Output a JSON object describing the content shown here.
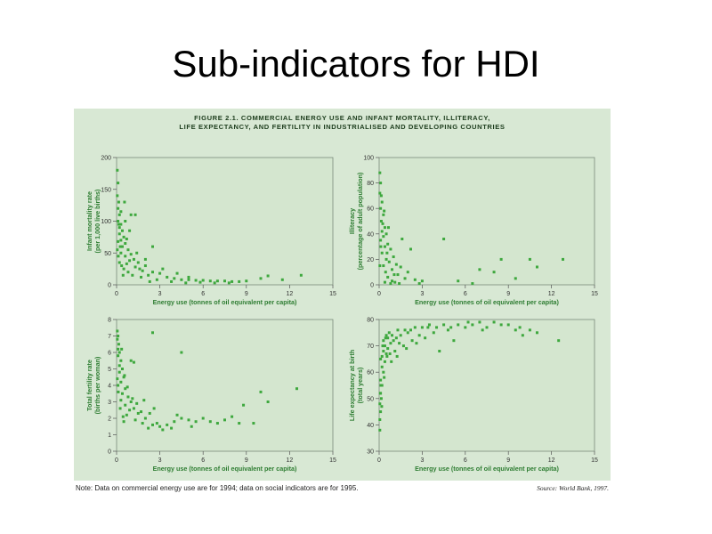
{
  "slide": {
    "title": "Sub-indicators for HDI"
  },
  "figure": {
    "caption_line1": "FIGURE 2.1. COMMERCIAL ENERGY USE AND INFANT MORTALITY, ILLITERACY,",
    "caption_line2": "LIFE EXPECTANCY, AND FERTILITY IN INDUSTRIALISED AND DEVELOPING COUNTRIES",
    "note": "Note: Data on commercial energy use are for 1994; data on social indicators are for 1995.",
    "source": "Source: World Bank, 1997.",
    "colors": {
      "panel_background": "#d8e8d4",
      "plot_background": "#d4e6cf",
      "points": "#3ea83e",
      "axis_text": "#2e7d32"
    }
  },
  "chart_data": [
    {
      "type": "scatter",
      "xlabel": "Energy use (tonnes of oil equivalent per capita)",
      "ylabel": "Infant mortality rate (per 1,000 live births)",
      "xlim": [
        0,
        15
      ],
      "ylim": [
        0,
        200
      ],
      "xticks": [
        0,
        3,
        6,
        9,
        12,
        15
      ],
      "yticks": [
        0,
        50,
        100,
        150,
        200
      ],
      "grid": false,
      "points": [
        [
          0.05,
          180
        ],
        [
          0.1,
          160
        ],
        [
          0.05,
          140
        ],
        [
          0.15,
          130
        ],
        [
          0.1,
          120
        ],
        [
          0.2,
          110
        ],
        [
          0.1,
          100
        ],
        [
          0.3,
          95
        ],
        [
          0.2,
          90
        ],
        [
          0.4,
          85
        ],
        [
          0.2,
          80
        ],
        [
          0.5,
          75
        ],
        [
          0.3,
          70
        ],
        [
          0.1,
          68
        ],
        [
          0.6,
          65
        ],
        [
          0.4,
          60
        ],
        [
          0.8,
          55
        ],
        [
          0.3,
          50
        ],
        [
          1.0,
          48
        ],
        [
          0.6,
          45
        ],
        [
          1.2,
          40
        ],
        [
          0.9,
          38
        ],
        [
          1.5,
          35
        ],
        [
          0.7,
          33
        ],
        [
          2.0,
          30
        ],
        [
          1.3,
          28
        ],
        [
          0.5,
          25
        ],
        [
          1.8,
          22
        ],
        [
          2.5,
          20
        ],
        [
          3.0,
          18
        ],
        [
          2.2,
          15
        ],
        [
          3.5,
          12
        ],
        [
          4.0,
          10
        ],
        [
          4.5,
          8
        ],
        [
          5.0,
          8
        ],
        [
          5.5,
          7
        ],
        [
          6.0,
          7
        ],
        [
          6.5,
          6
        ],
        [
          7.0,
          6
        ],
        [
          7.5,
          6
        ],
        [
          8.0,
          5
        ],
        [
          8.5,
          5
        ],
        [
          9.0,
          6
        ],
        [
          10.0,
          10
        ],
        [
          10.5,
          14
        ],
        [
          11.5,
          8
        ],
        [
          12.8,
          15
        ],
        [
          1.0,
          110
        ],
        [
          1.3,
          110
        ],
        [
          2.5,
          60
        ],
        [
          0.3,
          115
        ],
        [
          0.15,
          95
        ],
        [
          0.6,
          100
        ],
        [
          1.6,
          25
        ],
        [
          2.8,
          8
        ],
        [
          3.2,
          25
        ],
        [
          4.2,
          18
        ],
        [
          5.0,
          12
        ],
        [
          0.35,
          30
        ],
        [
          0.45,
          15
        ],
        [
          0.8,
          20
        ],
        [
          1.1,
          15
        ],
        [
          1.7,
          12
        ],
        [
          2.3,
          5
        ],
        [
          3.8,
          5
        ],
        [
          4.8,
          3
        ],
        [
          5.8,
          4
        ],
        [
          6.8,
          3
        ],
        [
          7.8,
          3
        ],
        [
          0.05,
          55
        ],
        [
          0.12,
          45
        ],
        [
          0.2,
          35
        ],
        [
          0.25,
          60
        ],
        [
          0.7,
          72
        ],
        [
          1.4,
          50
        ],
        [
          2.0,
          40
        ],
        [
          0.9,
          85
        ],
        [
          0.55,
          130
        ]
      ]
    },
    {
      "type": "scatter",
      "xlabel": "Energy use (tonnes of oil equivalent per capita)",
      "ylabel": "Illiteracy (percentage of adult population)",
      "xlim": [
        0,
        15
      ],
      "ylim": [
        0,
        100
      ],
      "xticks": [
        0,
        3,
        6,
        9,
        12,
        15
      ],
      "yticks": [
        0,
        20,
        40,
        60,
        80,
        100
      ],
      "grid": false,
      "points": [
        [
          0.05,
          88
        ],
        [
          0.1,
          80
        ],
        [
          0.05,
          72
        ],
        [
          0.2,
          65
        ],
        [
          0.1,
          60
        ],
        [
          0.3,
          55
        ],
        [
          0.15,
          50
        ],
        [
          0.4,
          45
        ],
        [
          0.2,
          42
        ],
        [
          0.5,
          40
        ],
        [
          0.3,
          38
        ],
        [
          0.1,
          35
        ],
        [
          0.6,
          32
        ],
        [
          0.4,
          30
        ],
        [
          0.8,
          28
        ],
        [
          0.2,
          25
        ],
        [
          1.0,
          22
        ],
        [
          0.5,
          20
        ],
        [
          0.7,
          18
        ],
        [
          1.2,
          16
        ],
        [
          0.3,
          15
        ],
        [
          1.5,
          14
        ],
        [
          0.9,
          12
        ],
        [
          2.0,
          10
        ],
        [
          1.3,
          8
        ],
        [
          0.6,
          6
        ],
        [
          1.8,
          5
        ],
        [
          2.5,
          4
        ],
        [
          3.0,
          3
        ],
        [
          0.4,
          2
        ],
        [
          1.1,
          2
        ],
        [
          0.8,
          1
        ],
        [
          4.5,
          36
        ],
        [
          5.5,
          3
        ],
        [
          6.5,
          1
        ],
        [
          7.0,
          12
        ],
        [
          8.0,
          10
        ],
        [
          8.5,
          20
        ],
        [
          9.5,
          5
        ],
        [
          10.5,
          20
        ],
        [
          11.0,
          14
        ],
        [
          12.8,
          20
        ],
        [
          0.15,
          70
        ],
        [
          0.25,
          48
        ],
        [
          0.35,
          58
        ],
        [
          0.55,
          25
        ],
        [
          1.6,
          36
        ],
        [
          2.2,
          28
        ],
        [
          0.45,
          10
        ],
        [
          0.9,
          3
        ],
        [
          1.4,
          1
        ],
        [
          2.8,
          1
        ],
        [
          0.05,
          15
        ],
        [
          0.12,
          30
        ],
        [
          0.65,
          45
        ],
        [
          1.05,
          8
        ]
      ]
    },
    {
      "type": "scatter",
      "xlabel": "Energy use (tonnes of oil equivalent per capita)",
      "ylabel": "Total fertility rate (births per woman)",
      "xlim": [
        0,
        15
      ],
      "ylim": [
        0,
        8
      ],
      "xticks": [
        0,
        3,
        6,
        9,
        12,
        15
      ],
      "yticks": [
        0,
        1,
        2,
        3,
        4,
        5,
        6,
        7,
        8
      ],
      "grid": false,
      "points": [
        [
          0.05,
          7.3
        ],
        [
          0.1,
          7.0
        ],
        [
          0.05,
          6.8
        ],
        [
          0.15,
          6.5
        ],
        [
          0.1,
          6.2
        ],
        [
          0.2,
          6.0
        ],
        [
          0.1,
          5.8
        ],
        [
          0.3,
          5.5
        ],
        [
          0.2,
          5.2
        ],
        [
          0.4,
          5.0
        ],
        [
          0.2,
          4.8
        ],
        [
          0.5,
          4.5
        ],
        [
          0.3,
          4.2
        ],
        [
          0.1,
          4.0
        ],
        [
          0.6,
          3.8
        ],
        [
          0.4,
          3.5
        ],
        [
          0.8,
          3.3
        ],
        [
          0.3,
          3.1
        ],
        [
          1.0,
          3.0
        ],
        [
          0.6,
          2.8
        ],
        [
          1.2,
          2.6
        ],
        [
          0.9,
          2.5
        ],
        [
          1.5,
          2.3
        ],
        [
          0.7,
          2.2
        ],
        [
          2.0,
          2.0
        ],
        [
          1.3,
          1.9
        ],
        [
          0.5,
          1.8
        ],
        [
          1.8,
          1.7
        ],
        [
          2.5,
          1.6
        ],
        [
          3.0,
          1.5
        ],
        [
          2.2,
          1.4
        ],
        [
          3.5,
          1.6
        ],
        [
          4.0,
          1.8
        ],
        [
          4.5,
          2.0
        ],
        [
          5.0,
          1.9
        ],
        [
          5.5,
          1.8
        ],
        [
          6.0,
          2.0
        ],
        [
          6.5,
          1.8
        ],
        [
          7.0,
          1.7
        ],
        [
          7.5,
          1.9
        ],
        [
          8.0,
          2.1
        ],
        [
          8.5,
          1.7
        ],
        [
          8.8,
          2.8
        ],
        [
          9.5,
          1.7
        ],
        [
          10.0,
          3.6
        ],
        [
          10.5,
          3.0
        ],
        [
          12.5,
          3.8
        ],
        [
          1.0,
          5.5
        ],
        [
          1.2,
          5.4
        ],
        [
          2.5,
          7.2
        ],
        [
          4.5,
          6.0
        ],
        [
          0.35,
          6.2
        ],
        [
          0.55,
          4.6
        ],
        [
          0.75,
          3.9
        ],
        [
          1.1,
          3.2
        ],
        [
          1.4,
          2.9
        ],
        [
          1.7,
          2.4
        ],
        [
          2.3,
          2.3
        ],
        [
          2.8,
          1.7
        ],
        [
          3.2,
          1.3
        ],
        [
          3.8,
          1.4
        ],
        [
          4.2,
          2.2
        ],
        [
          5.2,
          1.5
        ],
        [
          0.25,
          2.6
        ],
        [
          0.45,
          2.1
        ],
        [
          0.05,
          4.4
        ],
        [
          0.12,
          3.6
        ],
        [
          1.9,
          3.1
        ],
        [
          2.6,
          2.6
        ]
      ]
    },
    {
      "type": "scatter",
      "xlabel": "Energy use (tonnes of oil equivalent per capita)",
      "ylabel": "Life expectancy at birth (total years)",
      "xlim": [
        0,
        15
      ],
      "ylim": [
        30,
        80
      ],
      "xticks": [
        0,
        3,
        6,
        9,
        12,
        15
      ],
      "yticks": [
        30,
        40,
        50,
        60,
        70,
        80
      ],
      "grid": false,
      "points": [
        [
          0.05,
          42
        ],
        [
          0.1,
          45
        ],
        [
          0.05,
          48
        ],
        [
          0.15,
          50
        ],
        [
          0.1,
          52
        ],
        [
          0.2,
          55
        ],
        [
          0.1,
          57
        ],
        [
          0.3,
          60
        ],
        [
          0.2,
          62
        ],
        [
          0.4,
          64
        ],
        [
          0.2,
          66
        ],
        [
          0.5,
          67
        ],
        [
          0.3,
          68
        ],
        [
          0.1,
          65
        ],
        [
          0.6,
          69
        ],
        [
          0.4,
          70
        ],
        [
          0.8,
          71
        ],
        [
          0.3,
          72
        ],
        [
          1.0,
          72
        ],
        [
          0.6,
          73
        ],
        [
          1.2,
          73
        ],
        [
          0.9,
          74
        ],
        [
          1.5,
          74
        ],
        [
          0.7,
          75
        ],
        [
          2.0,
          75
        ],
        [
          1.3,
          76
        ],
        [
          0.5,
          74
        ],
        [
          1.8,
          76
        ],
        [
          2.5,
          77
        ],
        [
          3.0,
          77
        ],
        [
          2.2,
          76
        ],
        [
          3.5,
          78
        ],
        [
          4.0,
          77
        ],
        [
          4.5,
          78
        ],
        [
          5.0,
          77
        ],
        [
          5.5,
          78
        ],
        [
          6.0,
          77
        ],
        [
          6.5,
          78
        ],
        [
          7.0,
          79
        ],
        [
          7.5,
          77
        ],
        [
          8.0,
          79
        ],
        [
          8.5,
          78
        ],
        [
          9.0,
          78
        ],
        [
          9.5,
          76
        ],
        [
          10.0,
          74
        ],
        [
          10.5,
          76
        ],
        [
          11.0,
          75
        ],
        [
          12.5,
          72
        ],
        [
          0.35,
          58
        ],
        [
          0.55,
          66
        ],
        [
          0.75,
          67
        ],
        [
          1.1,
          68
        ],
        [
          1.4,
          71
        ],
        [
          1.7,
          70
        ],
        [
          2.3,
          72
        ],
        [
          2.8,
          74
        ],
        [
          3.2,
          73
        ],
        [
          3.8,
          75
        ],
        [
          4.2,
          68
        ],
        [
          5.2,
          72
        ],
        [
          0.25,
          70
        ],
        [
          0.45,
          73
        ],
        [
          0.05,
          38
        ],
        [
          0.12,
          55
        ],
        [
          1.9,
          69
        ],
        [
          2.6,
          71
        ],
        [
          0.85,
          64
        ],
        [
          1.25,
          66
        ],
        [
          3.4,
          77
        ],
        [
          4.8,
          76
        ],
        [
          6.2,
          79
        ],
        [
          7.2,
          76
        ],
        [
          9.8,
          77
        ],
        [
          0.18,
          47
        ],
        [
          0.08,
          52
        ]
      ]
    }
  ]
}
